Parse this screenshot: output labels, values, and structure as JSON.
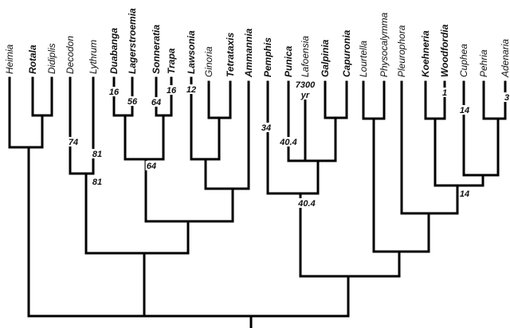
{
  "taxa": [
    {
      "name": "Heimia",
      "bold": false
    },
    {
      "name": "Rotala",
      "bold": true
    },
    {
      "name": "Didiplis",
      "bold": false
    },
    {
      "name": "Decodon",
      "bold": false
    },
    {
      "name": "Lythrum",
      "bold": false
    },
    {
      "name": "Duabanga",
      "bold": true
    },
    {
      "name": "Lagerstroemia",
      "bold": true
    },
    {
      "name": "Sonneratia",
      "bold": true
    },
    {
      "name": "Trapa",
      "bold": true
    },
    {
      "name": "Lawsonia",
      "bold": true
    },
    {
      "name": "Ginoria",
      "bold": false
    },
    {
      "name": "Tetrataxis",
      "bold": true
    },
    {
      "name": "Ammannia",
      "bold": true
    },
    {
      "name": "Pemphis",
      "bold": true
    },
    {
      "name": "Punica",
      "bold": true
    },
    {
      "name": "Lafoensia",
      "bold": false
    },
    {
      "name": "Galpinia",
      "bold": true
    },
    {
      "name": "Capuronia",
      "bold": true
    },
    {
      "name": "Lourtella",
      "bold": false
    },
    {
      "name": "Physocalymma",
      "bold": false
    },
    {
      "name": "Pleurophora",
      "bold": false
    },
    {
      "name": "Koehneria",
      "bold": true
    },
    {
      "name": "Woodfordia",
      "bold": true
    },
    {
      "name": "Cuphea",
      "bold": false
    },
    {
      "name": "Pehria",
      "bold": false
    },
    {
      "name": "Adenaria",
      "bold": false
    }
  ],
  "ages": [
    "16",
    "56",
    "64",
    "16",
    "12",
    "74",
    "81",
    "81",
    "64",
    "34",
    "40.4",
    "7300",
    "yr",
    "40.4",
    "1",
    "3",
    "14",
    "14"
  ]
}
